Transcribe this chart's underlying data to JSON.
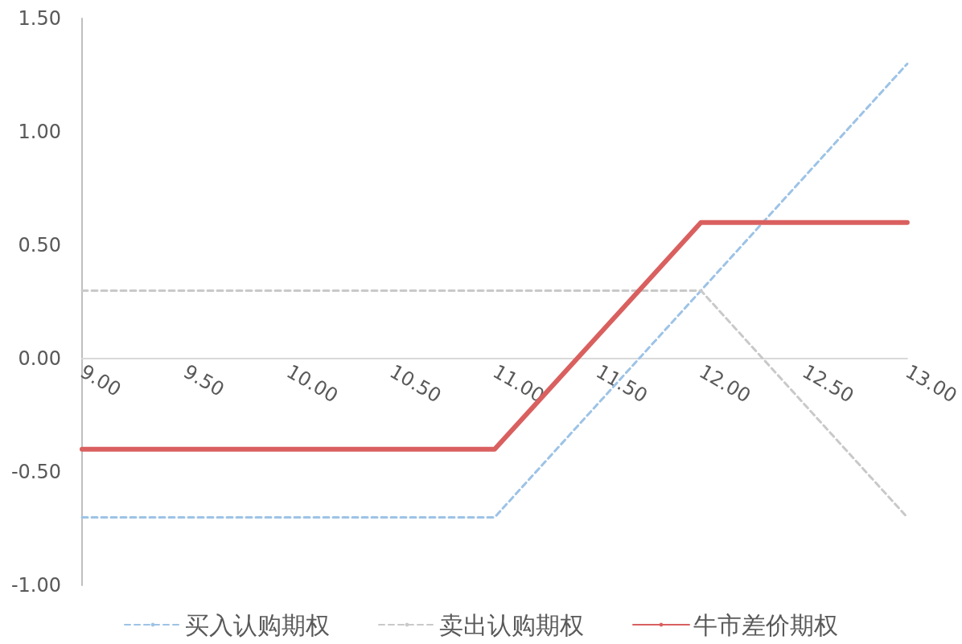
{
  "chart_data": {
    "type": "line",
    "x": [
      9,
      11,
      12,
      13
    ],
    "series": [
      {
        "name": "买入认购期权",
        "color": "#9dc3e6",
        "line_style": "dashed",
        "values": [
          -0.7,
          -0.7,
          0.3,
          1.3
        ]
      },
      {
        "name": "卖出认购期权",
        "color": "#c9c9c9",
        "line_style": "dashed",
        "values": [
          0.3,
          0.3,
          0.3,
          -0.7
        ]
      },
      {
        "name": "牛市差价期权",
        "color": "#d9605f",
        "line_style": "solid",
        "values": [
          -0.4,
          -0.4,
          0.6,
          0.6
        ]
      }
    ],
    "xlim": [
      9,
      13
    ],
    "xticks": [
      {
        "value": 9,
        "label": "9.00"
      },
      {
        "value": 9.5,
        "label": "9.50"
      },
      {
        "value": 10,
        "label": "10.00"
      },
      {
        "value": 10.5,
        "label": "10.50"
      },
      {
        "value": 11,
        "label": "11.00"
      },
      {
        "value": 11.5,
        "label": "11.50"
      },
      {
        "value": 12,
        "label": "12.00"
      },
      {
        "value": 12.5,
        "label": "12.50"
      },
      {
        "value": 13,
        "label": "13.00"
      }
    ],
    "ylim": [
      -1,
      1.5
    ],
    "yticks": [
      {
        "value": -1,
        "label": "-1.00"
      },
      {
        "value": -0.5,
        "label": "-0.50"
      },
      {
        "value": 0,
        "label": "0.00"
      },
      {
        "value": 0.5,
        "label": "0.50"
      },
      {
        "value": 1,
        "label": "1.00"
      },
      {
        "value": 1.5,
        "label": "1.50"
      }
    ],
    "grid": false,
    "legend": "bottom",
    "marker": "none"
  }
}
